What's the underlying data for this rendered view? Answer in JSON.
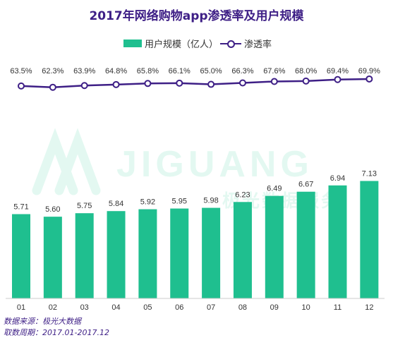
{
  "colors": {
    "bar": "#1fbf8f",
    "line": "#3e1f86",
    "title": "#3e1f86",
    "watermark": "#2ecf9a"
  },
  "chart_data": {
    "type": "bar",
    "title": "2017年网络购物app渗透率及用户规模",
    "categories": [
      "01",
      "02",
      "03",
      "04",
      "05",
      "06",
      "07",
      "08",
      "09",
      "10",
      "11",
      "12"
    ],
    "series": [
      {
        "name": "用户规模（亿人）",
        "type": "bar",
        "values": [
          5.71,
          5.6,
          5.75,
          5.84,
          5.92,
          5.95,
          5.98,
          6.23,
          6.49,
          6.67,
          6.94,
          7.13
        ],
        "labels": [
          "5.71",
          "5.60",
          "5.75",
          "5.84",
          "5.92",
          "5.95",
          "5.98",
          "6.23",
          "6.49",
          "6.67",
          "6.94",
          "7.13"
        ]
      },
      {
        "name": "渗透率",
        "type": "line",
        "values": [
          63.5,
          62.3,
          63.9,
          64.8,
          65.8,
          66.1,
          65.0,
          66.3,
          67.6,
          68.0,
          69.4,
          69.9
        ],
        "labels": [
          "63.5%",
          "62.3%",
          "63.9%",
          "64.8%",
          "65.8%",
          "66.1%",
          "65.0%",
          "66.3%",
          "67.6%",
          "68.0%",
          "69.4%",
          "69.9%"
        ]
      }
    ],
    "legend_position": "top-center",
    "grid": false
  },
  "watermark": {
    "brand": "JIGUANG",
    "text": "极光数据服务"
  },
  "source": {
    "line1": "数据来源：极光大数据",
    "line2": "取数周期：2017.01-2017.12"
  }
}
